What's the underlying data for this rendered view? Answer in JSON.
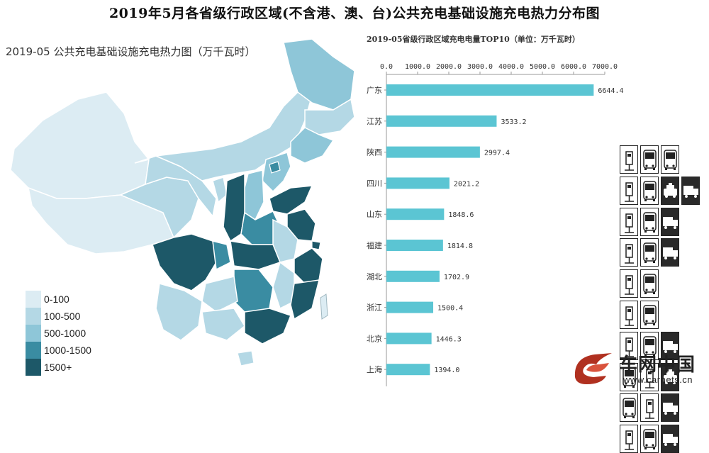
{
  "page_title": "2019年5月各省级行政区域(不含港、澳、台)公共充电基础设施充电热力分布图",
  "map": {
    "title": "2019-05 公共充电基础设施充电热力图（万千瓦时）",
    "legend": [
      {
        "label": "0-100",
        "color": "#dcecf3"
      },
      {
        "label": "100-500",
        "color": "#b4d8e5"
      },
      {
        "label": "500-1000",
        "color": "#8ec6d8"
      },
      {
        "label": "1000-1500",
        "color": "#3a8ca2"
      },
      {
        "label": "1500+",
        "color": "#1d5868"
      }
    ]
  },
  "chart_data": {
    "type": "bar",
    "orientation": "horizontal",
    "title": "2019-05省级行政区域充电电量TOP10（单位：万千瓦时）",
    "categories": [
      "广东",
      "江苏",
      "陕西",
      "四川",
      "山东",
      "福建",
      "湖北",
      "浙江",
      "北京",
      "上海"
    ],
    "values": [
      6644.4,
      3533.2,
      2997.4,
      2021.2,
      1848.6,
      1814.8,
      1702.9,
      1500.4,
      1446.3,
      1394.0
    ],
    "value_labels": [
      "6644.4",
      "3533.2",
      "2997.4",
      "2021.2",
      "1848.6",
      "1814.8",
      "1702.9",
      "1500.4",
      "1446.3",
      "1394.0"
    ],
    "xlim": [
      0,
      7000
    ],
    "ticks": [
      "0.0",
      "1000.0",
      "2000.0",
      "3000.0",
      "4000.0",
      "5000.0",
      "6000.0",
      "7000.0"
    ],
    "tick_values": [
      0,
      1000,
      2000,
      3000,
      4000,
      5000,
      6000,
      7000
    ],
    "axis_position": "top",
    "bar_color": "#5bc5d3",
    "grid": false
  },
  "vehicle_icons": [
    [
      "charger",
      "bus",
      "bus"
    ],
    [
      "charger",
      "bus",
      "taxi",
      "truck"
    ],
    [
      "charger",
      "bus",
      "truck"
    ],
    [
      "charger",
      "bus",
      "truck"
    ],
    [
      "charger",
      "bus"
    ],
    [
      "charger",
      "bus"
    ],
    [
      "charger",
      "bus",
      "truck"
    ],
    [
      "bus",
      "charger",
      "taxi"
    ],
    [
      "bus",
      "charger",
      "truck"
    ],
    [
      "charger",
      "bus",
      "truck"
    ]
  ],
  "logo": {
    "brand": "车网中国",
    "url": "www.carnets.cn"
  }
}
